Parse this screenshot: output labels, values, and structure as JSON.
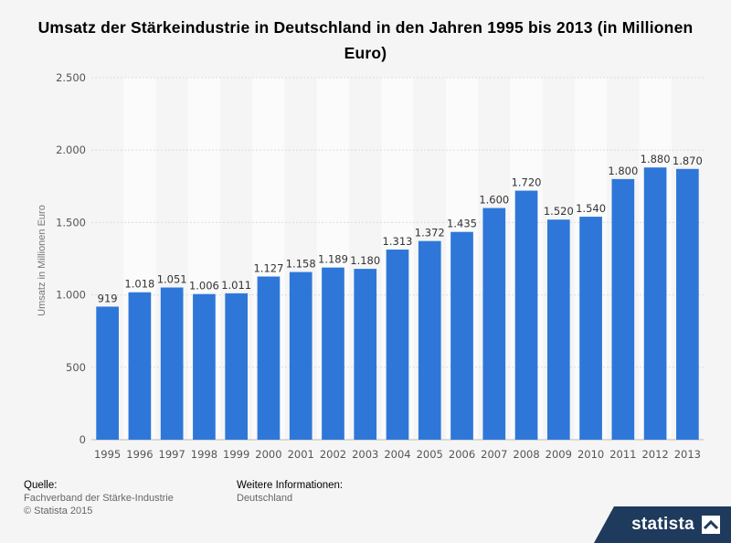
{
  "chart_data": {
    "type": "bar",
    "title": "Umsatz der Stärkeindustrie in Deutschland in den Jahren 1995 bis 2013 (in Millionen Euro)",
    "xlabel": "",
    "ylabel": "Umsatz in Millionen Euro",
    "categories": [
      "1995",
      "1996",
      "1997",
      "1998",
      "1999",
      "2000",
      "2001",
      "2002",
      "2003",
      "2004",
      "2005",
      "2006",
      "2007",
      "2008",
      "2009",
      "2010",
      "2011",
      "2012",
      "2013"
    ],
    "values": [
      919,
      1018,
      1051,
      1006,
      1011,
      1127,
      1158,
      1189,
      1180,
      1313,
      1372,
      1435,
      1600,
      1720,
      1520,
      1540,
      1800,
      1880,
      1870
    ],
    "value_labels": [
      "919",
      "1.018",
      "1.051",
      "1.006",
      "1.011",
      "1.127",
      "1.158",
      "1.189",
      "1.180",
      "1.313",
      "1.372",
      "1.435",
      "1.600",
      "1.720",
      "1.520",
      "1.540",
      "1.800",
      "1.880",
      "1.870"
    ],
    "ylim": [
      0,
      2500
    ],
    "yticks": [
      0,
      500,
      1000,
      1500,
      2000,
      2500
    ],
    "ytick_labels": [
      "0",
      "500",
      "1.000",
      "1.500",
      "2.000",
      "2.500"
    ],
    "grid": true,
    "bar_color": "#2e77d9"
  },
  "footer": {
    "source_heading": "Quelle:",
    "source_text": "Fachverband der Stärke-Industrie",
    "copyright": "© Statista 2015",
    "info_heading": "Weitere Informationen:",
    "info_text": "Deutschland"
  },
  "brand": {
    "name": "statista",
    "icon": "statista-logo-icon",
    "color": "#1e3a5c"
  }
}
